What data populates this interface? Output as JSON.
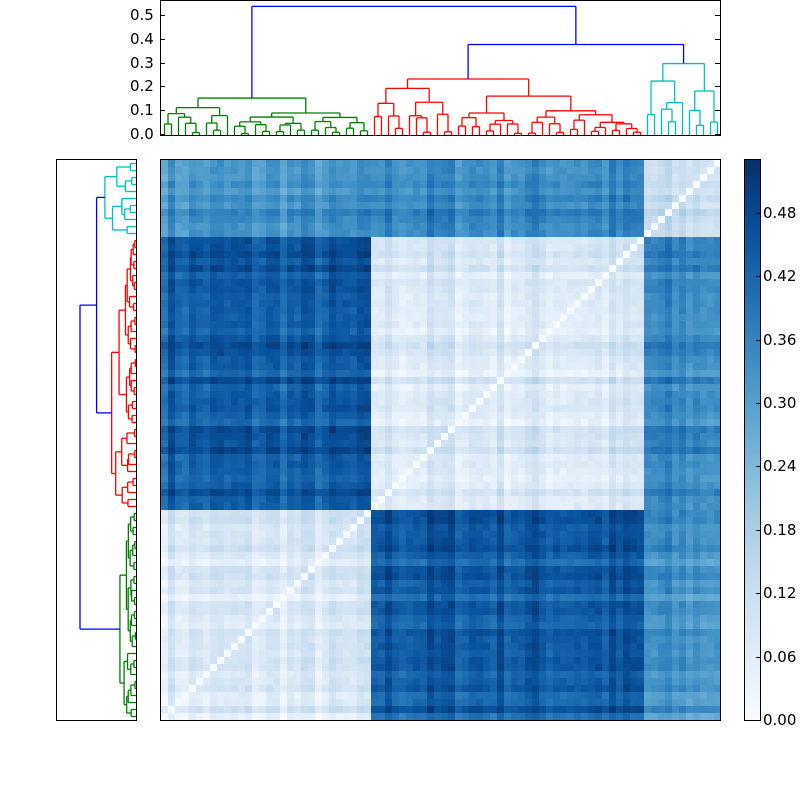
{
  "chart_data": {
    "type": "heatmap",
    "title": "",
    "description": "Clustered distance matrix with hierarchical-clustering dendrograms on top and left, and a Blues colorbar",
    "n_leaves": 80,
    "clusters": [
      {
        "name": "green",
        "color": "#008000",
        "size": 30,
        "merge_height": 0.155
      },
      {
        "name": "red",
        "color": "#ff0000",
        "size": 39,
        "merge_height": 0.235
      },
      {
        "name": "cyan",
        "color": "#00bfbf",
        "size": 11,
        "merge_height": 0.3
      }
    ],
    "top_links": [
      {
        "join": [
          "red",
          "cyan"
        ],
        "height": 0.38,
        "color": "#0000ff"
      },
      {
        "join": [
          "green",
          "red+cyan"
        ],
        "height": 0.54,
        "color": "#0000ff"
      }
    ],
    "block_means": {
      "green-green": 0.07,
      "green-red": 0.44,
      "green-cyan": 0.32,
      "red-red": 0.08,
      "red-cyan": 0.35,
      "cyan-cyan": 0.12
    },
    "top_dendrogram_axis": {
      "ylim": [
        0.0,
        0.55
      ],
      "ticks": [
        "0.0",
        "0.1",
        "0.2",
        "0.3",
        "0.4",
        "0.5"
      ]
    },
    "colorbar": {
      "cmap": "Blues",
      "range": [
        0.0,
        0.53
      ],
      "ticks": [
        "0.00",
        "0.06",
        "0.12",
        "0.18",
        "0.24",
        "0.30",
        "0.36",
        "0.42",
        "0.48"
      ],
      "colors": [
        "#f7fbff",
        "#deebf7",
        "#c6dbef",
        "#9ecae1",
        "#6baed6",
        "#4292c6",
        "#2171b5",
        "#08519c",
        "#08306b"
      ]
    }
  }
}
